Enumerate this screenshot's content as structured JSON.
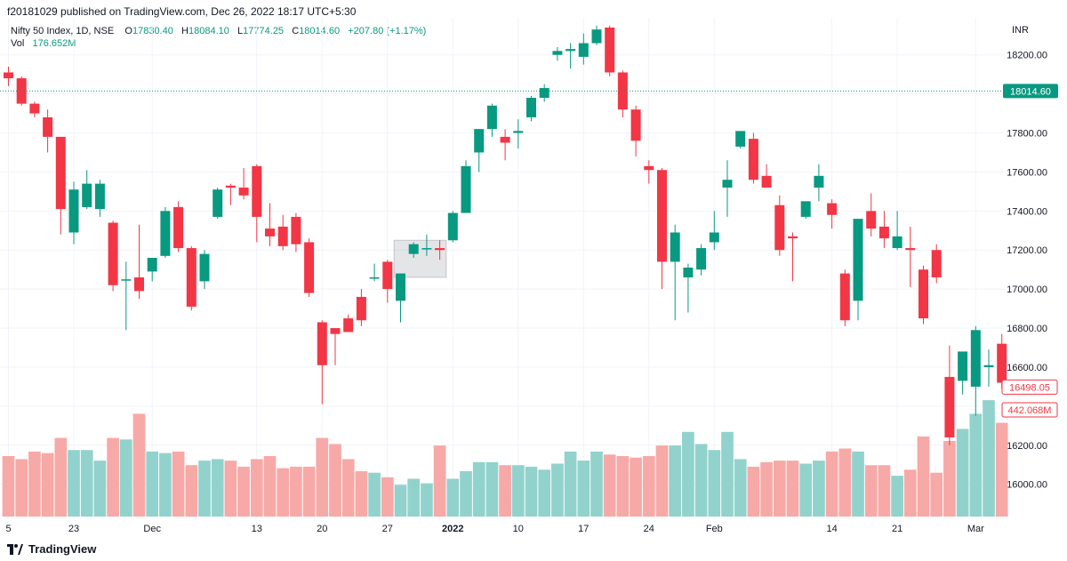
{
  "publish_line": "f20181029 published on TradingView.com, Dec 26, 2022 18:17 UTC+5:30",
  "legend": {
    "symbol": "Nifty 50 Index, 1D, NSE",
    "o_label": "O",
    "o": "17830.40",
    "h_label": "H",
    "h": "18084.10",
    "l_label": "L",
    "l": "17774.25",
    "c_label": "C",
    "c": "18014.60",
    "change": "+207.80 (+1.17%)",
    "vol_label": "Vol",
    "vol": "176.652M"
  },
  "currency": "INR",
  "brand": "TradingView",
  "colors": {
    "up": "#089981",
    "down": "#f23645",
    "vol_up": "#92d2cc",
    "vol_down": "#f7a9a7",
    "grid": "#f0f3fa",
    "axis_text": "#131722"
  },
  "chart_data": {
    "type": "candlestick",
    "y_axis_ticks": [
      "18200.00",
      "18000.00",
      "17800.00",
      "17600.00",
      "17400.00",
      "17200.00",
      "17000.00",
      "16800.00",
      "16600.00",
      "16400.00",
      "16200.00",
      "16000.00"
    ],
    "ylim": [
      15830,
      18390
    ],
    "x_axis_ticks": [
      {
        "label": "5",
        "bar": 0
      },
      {
        "label": "23",
        "bar": 5
      },
      {
        "label": "Dec",
        "bar": 11
      },
      {
        "label": "13",
        "bar": 19
      },
      {
        "label": "20",
        "bar": 24
      },
      {
        "label": "27",
        "bar": 29
      },
      {
        "label": "2022",
        "bar": 34
      },
      {
        "label": "10",
        "bar": 39
      },
      {
        "label": "17",
        "bar": 44
      },
      {
        "label": "24",
        "bar": 49
      },
      {
        "label": "Feb",
        "bar": 54
      },
      {
        "label": "14",
        "bar": 63
      },
      {
        "label": "21",
        "bar": 68
      },
      {
        "label": "Mar",
        "bar": 74
      }
    ],
    "candles": [
      {
        "o": 18110,
        "h": 18140,
        "l": 18040,
        "c": 18080
      },
      {
        "o": 18080,
        "h": 18090,
        "l": 17940,
        "c": 17950
      },
      {
        "o": 17950,
        "h": 17960,
        "l": 17880,
        "c": 17900
      },
      {
        "o": 17880,
        "h": 17920,
        "l": 17700,
        "c": 17780
      },
      {
        "o": 17780,
        "h": 17780,
        "l": 17280,
        "c": 17410
      },
      {
        "o": 17290,
        "h": 17550,
        "l": 17230,
        "c": 17510
      },
      {
        "o": 17420,
        "h": 17610,
        "l": 17410,
        "c": 17540
      },
      {
        "o": 17410,
        "h": 17560,
        "l": 17370,
        "c": 17540
      },
      {
        "o": 17340,
        "h": 17350,
        "l": 16990,
        "c": 17020
      },
      {
        "o": 17050,
        "h": 17140,
        "l": 16790,
        "c": 17050
      },
      {
        "o": 17060,
        "h": 17330,
        "l": 16950,
        "c": 16990
      },
      {
        "o": 17090,
        "h": 17140,
        "l": 17040,
        "c": 17160
      },
      {
        "o": 17170,
        "h": 17420,
        "l": 17160,
        "c": 17400
      },
      {
        "o": 17420,
        "h": 17450,
        "l": 17190,
        "c": 17210
      },
      {
        "o": 17210,
        "h": 17220,
        "l": 16890,
        "c": 16910
      },
      {
        "o": 17040,
        "h": 17200,
        "l": 17000,
        "c": 17180
      },
      {
        "o": 17370,
        "h": 17520,
        "l": 17360,
        "c": 17510
      },
      {
        "o": 17530,
        "h": 17540,
        "l": 17430,
        "c": 17520
      },
      {
        "o": 17520,
        "h": 17620,
        "l": 17460,
        "c": 17480
      },
      {
        "o": 17630,
        "h": 17640,
        "l": 17240,
        "c": 17370
      },
      {
        "o": 17310,
        "h": 17440,
        "l": 17220,
        "c": 17270
      },
      {
        "o": 17320,
        "h": 17380,
        "l": 17200,
        "c": 17220
      },
      {
        "o": 17370,
        "h": 17390,
        "l": 17190,
        "c": 17230
      },
      {
        "o": 17240,
        "h": 17260,
        "l": 16960,
        "c": 16980
      },
      {
        "o": 16830,
        "h": 16840,
        "l": 16410,
        "c": 16610
      },
      {
        "o": 16800,
        "h": 16800,
        "l": 16610,
        "c": 16770
      },
      {
        "o": 16850,
        "h": 16870,
        "l": 16800,
        "c": 16780
      },
      {
        "o": 16960,
        "h": 17000,
        "l": 16810,
        "c": 16840
      },
      {
        "o": 17060,
        "h": 17130,
        "l": 17040,
        "c": 17060
      },
      {
        "o": 17140,
        "h": 17150,
        "l": 16930,
        "c": 17000
      },
      {
        "o": 16940,
        "h": 17080,
        "l": 16830,
        "c": 17080
      },
      {
        "o": 17180,
        "h": 17240,
        "l": 17160,
        "c": 17230
      },
      {
        "o": 17210,
        "h": 17280,
        "l": 17170,
        "c": 17210
      },
      {
        "o": 17210,
        "h": 17250,
        "l": 17150,
        "c": 17200
      },
      {
        "o": 17250,
        "h": 17400,
        "l": 17240,
        "c": 17390
      },
      {
        "o": 17390,
        "h": 17660,
        "l": 17390,
        "c": 17630
      },
      {
        "o": 17700,
        "h": 17820,
        "l": 17600,
        "c": 17820
      },
      {
        "o": 17820,
        "h": 17950,
        "l": 17780,
        "c": 17940
      },
      {
        "o": 17780,
        "h": 17820,
        "l": 17660,
        "c": 17750
      },
      {
        "o": 17800,
        "h": 17870,
        "l": 17720,
        "c": 17810
      },
      {
        "o": 17880,
        "h": 17990,
        "l": 17860,
        "c": 17980
      },
      {
        "o": 17980,
        "h": 18050,
        "l": 17960,
        "c": 18030
      },
      {
        "o": 18200,
        "h": 18240,
        "l": 18170,
        "c": 18220
      },
      {
        "o": 18220,
        "h": 18260,
        "l": 18130,
        "c": 18230
      },
      {
        "o": 18190,
        "h": 18310,
        "l": 18150,
        "c": 18260
      },
      {
        "o": 18260,
        "h": 18350,
        "l": 18250,
        "c": 18330
      },
      {
        "o": 18340,
        "h": 18350,
        "l": 18090,
        "c": 18110
      },
      {
        "o": 18110,
        "h": 18120,
        "l": 17880,
        "c": 17920
      },
      {
        "o": 17920,
        "h": 17940,
        "l": 17680,
        "c": 17760
      },
      {
        "o": 17630,
        "h": 17660,
        "l": 17540,
        "c": 17610
      },
      {
        "o": 17610,
        "h": 17620,
        "l": 17000,
        "c": 17140
      },
      {
        "o": 17140,
        "h": 17330,
        "l": 16840,
        "c": 17290
      },
      {
        "o": 17060,
        "h": 17130,
        "l": 16880,
        "c": 17110
      },
      {
        "o": 17100,
        "h": 17230,
        "l": 17070,
        "c": 17210
      },
      {
        "o": 17240,
        "h": 17400,
        "l": 17200,
        "c": 17290
      },
      {
        "o": 17520,
        "h": 17660,
        "l": 17370,
        "c": 17560
      },
      {
        "o": 17730,
        "h": 17800,
        "l": 17720,
        "c": 17810
      },
      {
        "o": 17770,
        "h": 17800,
        "l": 17540,
        "c": 17560
      },
      {
        "o": 17580,
        "h": 17640,
        "l": 17520,
        "c": 17520
      },
      {
        "o": 17430,
        "h": 17480,
        "l": 17170,
        "c": 17200
      },
      {
        "o": 17270,
        "h": 17290,
        "l": 17040,
        "c": 17260
      },
      {
        "o": 17370,
        "h": 17430,
        "l": 17360,
        "c": 17450
      },
      {
        "o": 17520,
        "h": 17640,
        "l": 17450,
        "c": 17580
      },
      {
        "o": 17440,
        "h": 17460,
        "l": 17310,
        "c": 17380
      },
      {
        "o": 17080,
        "h": 17100,
        "l": 16810,
        "c": 16840
      },
      {
        "o": 16940,
        "h": 17350,
        "l": 16840,
        "c": 17360
      },
      {
        "o": 17400,
        "h": 17490,
        "l": 17270,
        "c": 17310
      },
      {
        "o": 17320,
        "h": 17400,
        "l": 17210,
        "c": 17260
      },
      {
        "o": 17210,
        "h": 17400,
        "l": 17200,
        "c": 17270
      },
      {
        "o": 17210,
        "h": 17320,
        "l": 17010,
        "c": 17200
      },
      {
        "o": 17100,
        "h": 17120,
        "l": 16820,
        "c": 16850
      },
      {
        "o": 17200,
        "h": 17230,
        "l": 17030,
        "c": 17060
      },
      {
        "o": 16550,
        "h": 16710,
        "l": 16200,
        "c": 16240
      },
      {
        "o": 16530,
        "h": 16680,
        "l": 16460,
        "c": 16680
      },
      {
        "o": 16500,
        "h": 16810,
        "l": 16350,
        "c": 16790
      },
      {
        "o": 16600,
        "h": 16690,
        "l": 16500,
        "c": 16610
      },
      {
        "o": 16720,
        "h": 16770,
        "l": 16490,
        "c": 16520
      }
    ],
    "volume_heights": [
      0.4,
      0.38,
      0.43,
      0.42,
      0.52,
      0.44,
      0.44,
      0.37,
      0.52,
      0.51,
      0.68,
      0.43,
      0.42,
      0.43,
      0.34,
      0.37,
      0.38,
      0.37,
      0.33,
      0.38,
      0.4,
      0.32,
      0.33,
      0.33,
      0.52,
      0.48,
      0.38,
      0.3,
      0.29,
      0.26,
      0.21,
      0.25,
      0.22,
      0.47,
      0.25,
      0.3,
      0.36,
      0.36,
      0.34,
      0.34,
      0.33,
      0.31,
      0.35,
      0.43,
      0.37,
      0.43,
      0.41,
      0.4,
      0.39,
      0.4,
      0.47,
      0.47,
      0.56,
      0.48,
      0.44,
      0.56,
      0.38,
      0.33,
      0.36,
      0.37,
      0.37,
      0.35,
      0.37,
      0.43,
      0.45,
      0.43,
      0.34,
      0.34,
      0.27,
      0.31,
      0.53,
      0.29,
      0.5,
      0.58,
      0.68,
      0.77,
      0.62
    ],
    "last_price": {
      "value": 18014.6,
      "label": "18014.60"
    },
    "extra_labels": [
      {
        "label": "16498.05",
        "value": 16498.05
      }
    ],
    "volume_label": "442.068M",
    "highlight": {
      "from_bar": 30,
      "to_bar": 33,
      "y_top": 17250,
      "y_bottom": 17060
    }
  }
}
